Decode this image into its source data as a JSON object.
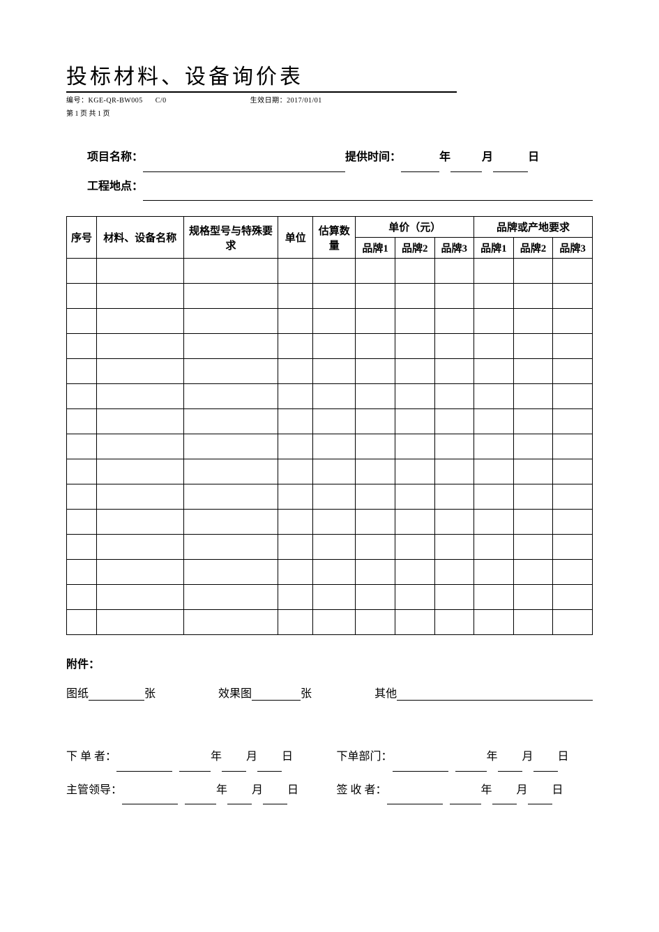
{
  "title": "投标材料、设备询价表",
  "meta": {
    "code_label": "编号：",
    "code_value": "KGE-QR-BW005",
    "rev": "C/0",
    "effective_label": "生效日期：",
    "effective_value": "2017/01/01",
    "page_info": "第 1 页 共 1 页"
  },
  "info": {
    "project_label": "项目名称：",
    "provide_label": "提供时间：",
    "year": "年",
    "month": "月",
    "day": "日",
    "location_label": "工程地点："
  },
  "table": {
    "headers": {
      "seq": "序号",
      "name": "材料、设备名称",
      "spec": "规格型号与特殊要求",
      "unit": "单位",
      "qty": "估算数量",
      "price_group": "单价（元）",
      "brand_group": "品牌或产地要求",
      "brand1": "品牌1",
      "brand2": "品牌2",
      "brand3": "品牌3"
    },
    "row_count": 15
  },
  "attachments": {
    "title": "附件：",
    "drawing": "图纸",
    "render": "效果图",
    "other": "其他",
    "sheet_unit": "张"
  },
  "signoff": {
    "orderer": "下 单 者：",
    "dept": "下单部门：",
    "leader": "主管领导：",
    "receiver": "签 收 者：",
    "year": "年",
    "month": "月",
    "day": "日"
  },
  "style": {
    "text_color": "#000000",
    "background": "#ffffff",
    "border_color": "#000000"
  }
}
